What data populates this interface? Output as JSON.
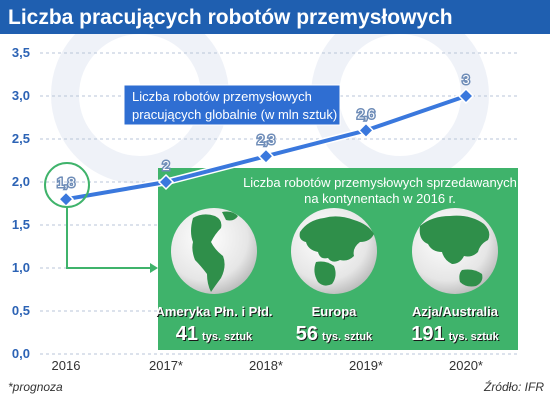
{
  "header": {
    "title": "Liczba pracujących robotów przemysłowych"
  },
  "chart_data": {
    "type": "line",
    "title": "Liczba pracujących robotów przemysłowych",
    "categories": [
      "2016",
      "2017*",
      "2018*",
      "2019*",
      "2020*"
    ],
    "series": [
      {
        "name": "Liczba robotów przemysłowych pracujących globalnie (w mln sztuk)",
        "values": [
          1.8,
          2.0,
          2.3,
          2.6,
          3.0
        ]
      }
    ],
    "data_labels": [
      "1,8",
      "2",
      "2,3",
      "2,6",
      "3"
    ],
    "ylim": [
      0,
      3.5
    ],
    "yticks": [
      "0,0",
      "0,5",
      "1,0",
      "1,5",
      "2,0",
      "2,5",
      "3,0",
      "3,5"
    ],
    "ytick_values": [
      0,
      0.5,
      1.0,
      1.5,
      2.0,
      2.5,
      3.0,
      3.5
    ],
    "grid": true,
    "legend_lines": [
      "Liczba robotów przemysłowych",
      "pracujących globalnie (w mln sztuk)"
    ]
  },
  "inset": {
    "title_lines": [
      "Liczba robotów przemysłowych sprzedawanych",
      "na kontynentach w 2016 r."
    ],
    "regions": [
      {
        "name": "Ameryka Płn. i Płd.",
        "value": "41",
        "unit": "tys. sztuk",
        "icon": "globe-americas-icon"
      },
      {
        "name": "Europa",
        "value": "56",
        "unit": "tys. sztuk",
        "icon": "globe-europe-icon"
      },
      {
        "name": "Azja/Australia",
        "value": "191",
        "unit": "tys. sztuk",
        "icon": "globe-asia-icon"
      }
    ]
  },
  "footer": {
    "note": "*prognoza",
    "source": "Źródło: IFR"
  },
  "colors": {
    "title_bar": "#1f5fb0",
    "line": "#3a78dd",
    "panel": "#3fb36b"
  }
}
